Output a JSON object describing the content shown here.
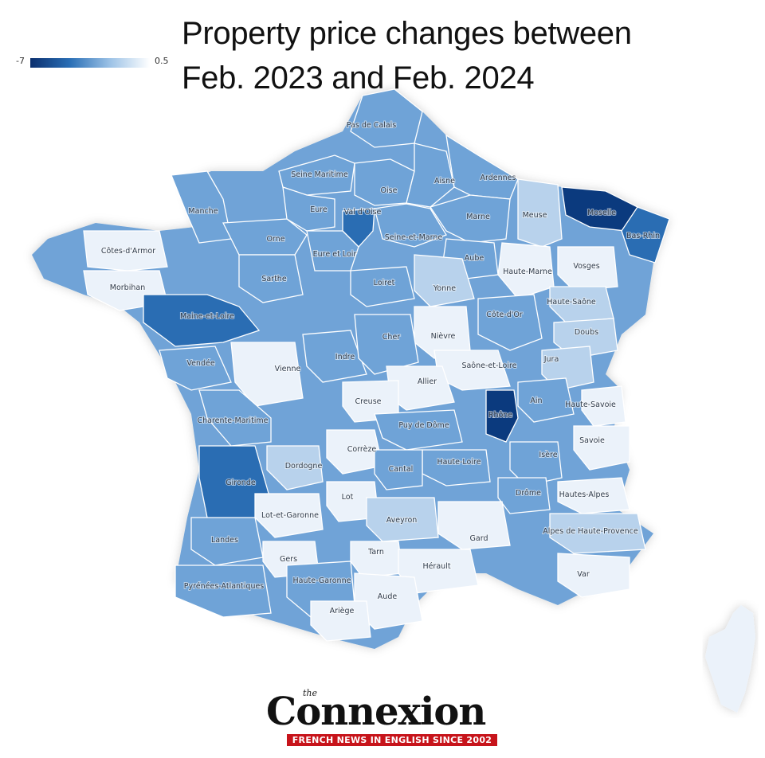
{
  "title": {
    "line1": "Property price changes between",
    "line2": "Feb. 2023 and Feb. 2024"
  },
  "legend": {
    "min_label": "-7",
    "max_label": "0.5",
    "color_low": "#0b2f6e",
    "color_high": "#ffffff"
  },
  "colors": {
    "very_dark": "#0b3a7e",
    "dark": "#2a6db3",
    "medium": "#6fa3d7",
    "light": "#b8d2ec",
    "very_light": "#ebf2fa"
  },
  "departments": [
    {
      "name": "Pas-de-Calais",
      "level": "medium"
    },
    {
      "name": "Seine-Maritime",
      "level": "medium"
    },
    {
      "name": "Oise",
      "level": "medium"
    },
    {
      "name": "Aisne",
      "level": "medium"
    },
    {
      "name": "Ardennes",
      "level": "medium"
    },
    {
      "name": "Manche",
      "level": "medium"
    },
    {
      "name": "Eure",
      "level": "medium"
    },
    {
      "name": "Val-d'Oise",
      "level": "dark"
    },
    {
      "name": "Marne",
      "level": "medium"
    },
    {
      "name": "Meuse",
      "level": "light"
    },
    {
      "name": "Moselle",
      "level": "very_dark"
    },
    {
      "name": "Bas-Rhin",
      "level": "dark"
    },
    {
      "name": "Seine-et-Marne",
      "level": "medium"
    },
    {
      "name": "Côtes-d'Armor",
      "level": "very_light"
    },
    {
      "name": "Orne",
      "level": "medium"
    },
    {
      "name": "Eure-et-Loir",
      "level": "medium"
    },
    {
      "name": "Aube",
      "level": "medium"
    },
    {
      "name": "Vosges",
      "level": "very_light"
    },
    {
      "name": "Haute-Marne",
      "level": "very_light"
    },
    {
      "name": "Morbihan",
      "level": "very_light"
    },
    {
      "name": "Sarthe",
      "level": "medium"
    },
    {
      "name": "Loiret",
      "level": "medium"
    },
    {
      "name": "Yonne",
      "level": "light"
    },
    {
      "name": "Haute-Saône",
      "level": "light"
    },
    {
      "name": "Maine-et-Loire",
      "level": "dark"
    },
    {
      "name": "Côte-d'Or",
      "level": "medium"
    },
    {
      "name": "Doubs",
      "level": "light"
    },
    {
      "name": "Nièvre",
      "level": "very_light"
    },
    {
      "name": "Indre",
      "level": "medium"
    },
    {
      "name": "Cher",
      "level": "medium"
    },
    {
      "name": "Vendée",
      "level": "medium"
    },
    {
      "name": "Vienne",
      "level": "very_light"
    },
    {
      "name": "Saône-et-Loire",
      "level": "very_light"
    },
    {
      "name": "Jura",
      "level": "light"
    },
    {
      "name": "Allier",
      "level": "very_light"
    },
    {
      "name": "Creuse",
      "level": "very_light"
    },
    {
      "name": "Ain",
      "level": "medium"
    },
    {
      "name": "Haute-Savoie",
      "level": "very_light"
    },
    {
      "name": "Charente-Maritime",
      "level": "medium"
    },
    {
      "name": "Rhône",
      "level": "very_dark"
    },
    {
      "name": "Puy-de-Dôme",
      "level": "medium"
    },
    {
      "name": "Savoie",
      "level": "very_light"
    },
    {
      "name": "Corrèze",
      "level": "very_light"
    },
    {
      "name": "Isère",
      "level": "medium"
    },
    {
      "name": "Dordogne",
      "level": "light"
    },
    {
      "name": "Haute-Loire",
      "level": "medium"
    },
    {
      "name": "Cantal",
      "level": "medium"
    },
    {
      "name": "Gironde",
      "level": "dark"
    },
    {
      "name": "Drôme",
      "level": "medium"
    },
    {
      "name": "Hautes-Alpes",
      "level": "very_light"
    },
    {
      "name": "Lot",
      "level": "very_light"
    },
    {
      "name": "Lot-et-Garonne",
      "level": "very_light"
    },
    {
      "name": "Aveyron",
      "level": "light"
    },
    {
      "name": "Alpes-de-Haute-Provence",
      "level": "light"
    },
    {
      "name": "Gard",
      "level": "very_light"
    },
    {
      "name": "Landes",
      "level": "medium"
    },
    {
      "name": "Gers",
      "level": "very_light"
    },
    {
      "name": "Tarn",
      "level": "very_light"
    },
    {
      "name": "Hérault",
      "level": "very_light"
    },
    {
      "name": "Var",
      "level": "very_light"
    },
    {
      "name": "Haute-Garonne",
      "level": "medium"
    },
    {
      "name": "Pyrénées-Atlantiques",
      "level": "medium"
    },
    {
      "name": "Aude",
      "level": "very_light"
    },
    {
      "name": "Ariège",
      "level": "very_light"
    }
  ],
  "map_labels": [
    "Pas de Calais",
    "Seine Maritime",
    "Oise",
    "Aisne",
    "Ardennes",
    "Manche",
    "Eure",
    "Val d'Oise",
    "Marne",
    "Meuse",
    "Moselle",
    "Bas-Rhin",
    "Seine-et-Marne",
    "Côtes-d'Armor",
    "Orne",
    "Eure et Loir",
    "Aube",
    "Vosges",
    "Haute-Marne",
    "Morbihan",
    "Sarthe",
    "Loiret",
    "Yonne",
    "Haute-Saône",
    "Maine-et-Loire",
    "Côte-d'Or",
    "Doubs",
    "Nièvre",
    "Indre",
    "Cher",
    "Vendée",
    "Vienne",
    "Saône-et-Loire",
    "Jura",
    "Allier",
    "Creuse",
    "Ain",
    "Haute-Savoie",
    "Charente-Maritime",
    "Rhône",
    "Puy de Dôme",
    "Savoie",
    "Corrèze",
    "Isère",
    "Dordogne",
    "Haute-Loire",
    "Cantal",
    "Gironde",
    "Drôme",
    "Hautes-Alpes",
    "Lot",
    "Lot-et-Garonne",
    "Aveyron",
    "Alpes de Haute-Provence",
    "Gard",
    "Landes",
    "Gers",
    "Tarn",
    "Hérault",
    "Var",
    "Haute-Garonne",
    "Pyrénées-Atlantiques",
    "Aude",
    "Ariège"
  ],
  "logo": {
    "the": "the",
    "name": "Connexion",
    "tagline": "FRENCH NEWS IN ENGLISH SINCE 2002"
  }
}
